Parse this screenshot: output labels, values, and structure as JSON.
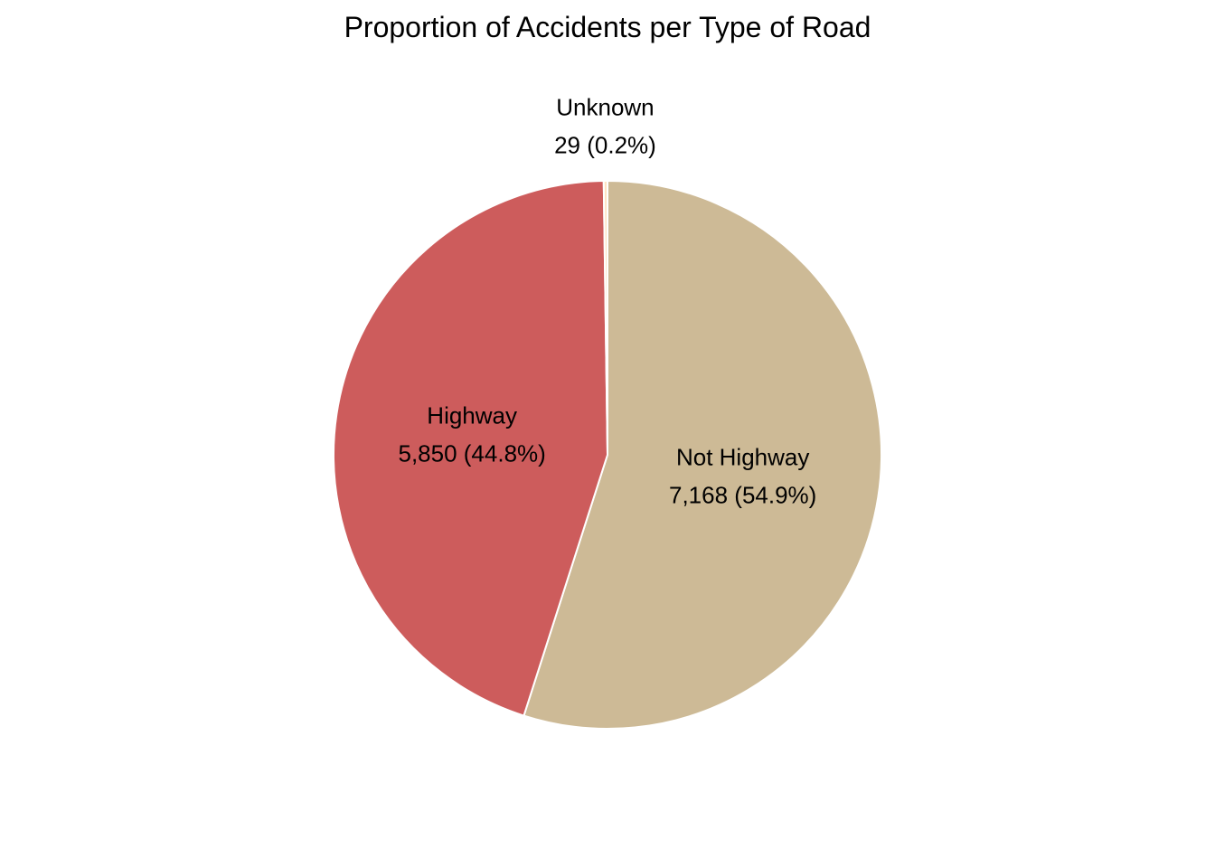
{
  "chart_data": {
    "type": "pie",
    "title": "Proportion of Accidents per Type of Road",
    "start_angle_deg": 90,
    "direction": "clockwise",
    "slices": [
      {
        "label": "Not Highway",
        "value": 7168,
        "value_text": "7,168 (54.9%)",
        "percent": 54.9,
        "color": "#CDBA96"
      },
      {
        "label": "Highway",
        "value": 5850,
        "value_text": "5,850 (44.8%)",
        "percent": 44.8,
        "color": "#CD5C5C"
      },
      {
        "label": "Unknown",
        "value": 29,
        "value_text": "29 (0.2%)",
        "percent": 0.2,
        "color": "#FFE4C4"
      }
    ],
    "slice_border_color": "#ffffff",
    "legend": "none"
  }
}
